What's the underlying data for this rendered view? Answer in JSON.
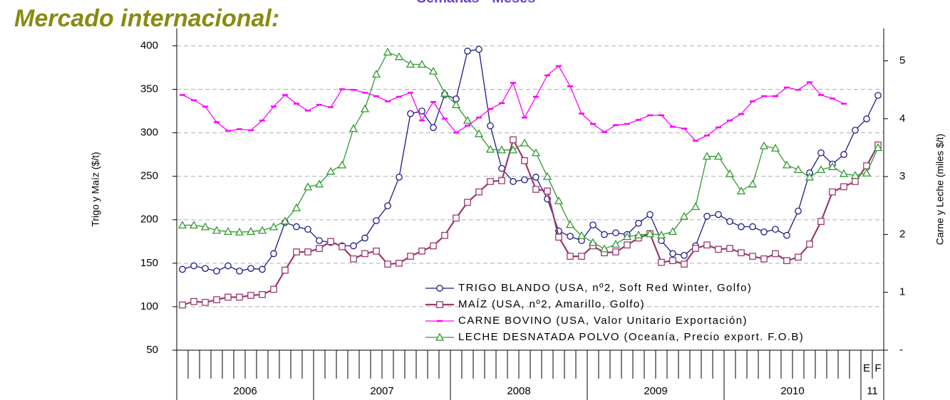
{
  "chart_data": {
    "type": "line",
    "title": "Mercado internacional:",
    "subtitle": "Semanas - Meses",
    "ylabel": "Trigo y Maíz ($/t)",
    "y2label": "Carne y Leche (miles $/t)",
    "categories": [
      null,
      null,
      null,
      null,
      null,
      null,
      null,
      null,
      null,
      null,
      null,
      null,
      null,
      null,
      null,
      null,
      null,
      null,
      null,
      null,
      null,
      null,
      null,
      null,
      null,
      null,
      null,
      null,
      null,
      null,
      null,
      null,
      null,
      null,
      null,
      null,
      null,
      null,
      null,
      null,
      null,
      null,
      null,
      null,
      null,
      null,
      null,
      null,
      null,
      null,
      null,
      null,
      null,
      null,
      null,
      null,
      null,
      null,
      null,
      null,
      "E",
      "F"
    ],
    "years": [
      "2006",
      "2007",
      "2008",
      "2009",
      "2010",
      "11"
    ],
    "ylim": [
      50,
      420
    ],
    "yticks": [
      50,
      100,
      150,
      200,
      250,
      300,
      350,
      400
    ],
    "y2lim": [
      0,
      5.56
    ],
    "y2ticks": [
      {
        "value": 0,
        "label": "-"
      },
      1,
      2,
      3,
      4,
      5
    ],
    "grid": true,
    "legend": "lower-right",
    "series": [
      {
        "name": "TRIGO BLANDO (USA, nº2, Soft Red Winter, Golfo)",
        "color": "#1c1c86",
        "marker": "circle",
        "values": [
          143,
          147,
          144,
          141,
          147,
          141,
          144,
          143,
          161,
          197,
          192,
          189,
          176,
          174,
          170,
          170,
          179,
          199,
          216,
          249,
          322,
          325,
          306,
          344,
          339,
          394,
          396,
          308,
          259,
          244,
          246,
          249,
          224,
          187,
          181,
          176,
          194,
          183,
          185,
          183,
          196,
          206,
          176,
          161,
          159,
          170,
          204,
          206,
          198,
          192,
          192,
          186,
          189,
          182,
          210,
          254,
          277,
          264,
          275,
          303,
          316,
          343
        ]
      },
      {
        "name": "MAÍZ (USA, nº2, Amarillo, Golfo)",
        "color": "#9b3a6e",
        "marker": "square",
        "values": [
          102,
          106,
          105,
          108,
          111,
          111,
          113,
          114,
          120,
          142,
          163,
          163,
          167,
          175,
          169,
          155,
          161,
          164,
          149,
          150,
          158,
          164,
          170,
          182,
          202,
          220,
          232,
          244,
          245,
          292,
          268,
          235,
          233,
          180,
          158,
          158,
          170,
          162,
          163,
          171,
          179,
          184,
          151,
          153,
          149,
          167,
          171,
          166,
          167,
          162,
          158,
          155,
          161,
          153,
          157,
          172,
          198,
          232,
          238,
          244,
          262,
          286
        ]
      },
      {
        "name": "CARNE BOVINO (USA, Valor Unitario Exportación)",
        "color": "#ff00ff",
        "marker": "dash",
        "axis": "y2",
        "values": [
          4.41,
          4.32,
          4.21,
          3.94,
          3.79,
          3.82,
          3.8,
          3.97,
          4.21,
          4.41,
          4.26,
          4.14,
          4.24,
          4.2,
          4.51,
          4.5,
          4.45,
          4.39,
          4.3,
          4.38,
          4.45,
          3.97,
          4.29,
          4.0,
          3.76,
          3.88,
          4.02,
          4.17,
          4.27,
          4.62,
          4.02,
          4.38,
          4.75,
          4.91,
          4.56,
          4.09,
          3.91,
          3.77,
          3.89,
          3.91,
          3.98,
          4.06,
          4.06,
          3.86,
          3.83,
          3.62,
          3.71,
          3.85,
          3.97,
          4.08,
          4.3,
          4.39,
          4.39,
          4.54,
          4.5,
          4.63,
          4.41,
          4.35,
          4.26,
          null,
          null,
          null
        ]
      },
      {
        "name": "LECHE DESNATADA POLVO (Oceanía, Precio export. F.O.B)",
        "color": "#2f9a2f",
        "marker": "triangle",
        "axis": "y2",
        "values": [
          2.16,
          2.16,
          2.13,
          2.07,
          2.05,
          2.04,
          2.05,
          2.07,
          2.13,
          2.23,
          2.46,
          2.82,
          2.87,
          3.09,
          3.2,
          3.83,
          4.17,
          4.77,
          5.15,
          5.07,
          4.94,
          4.94,
          4.82,
          4.44,
          4.24,
          3.97,
          3.74,
          3.47,
          3.46,
          3.46,
          3.58,
          3.41,
          3.0,
          2.58,
          2.17,
          1.98,
          1.86,
          1.75,
          1.83,
          1.96,
          1.99,
          2.01,
          1.99,
          2.05,
          2.31,
          2.48,
          3.35,
          3.35,
          3.05,
          2.75,
          2.87,
          3.53,
          3.49,
          3.2,
          3.12,
          2.99,
          3.12,
          3.17,
          3.05,
          3.02,
          3.06,
          3.5
        ]
      }
    ]
  }
}
